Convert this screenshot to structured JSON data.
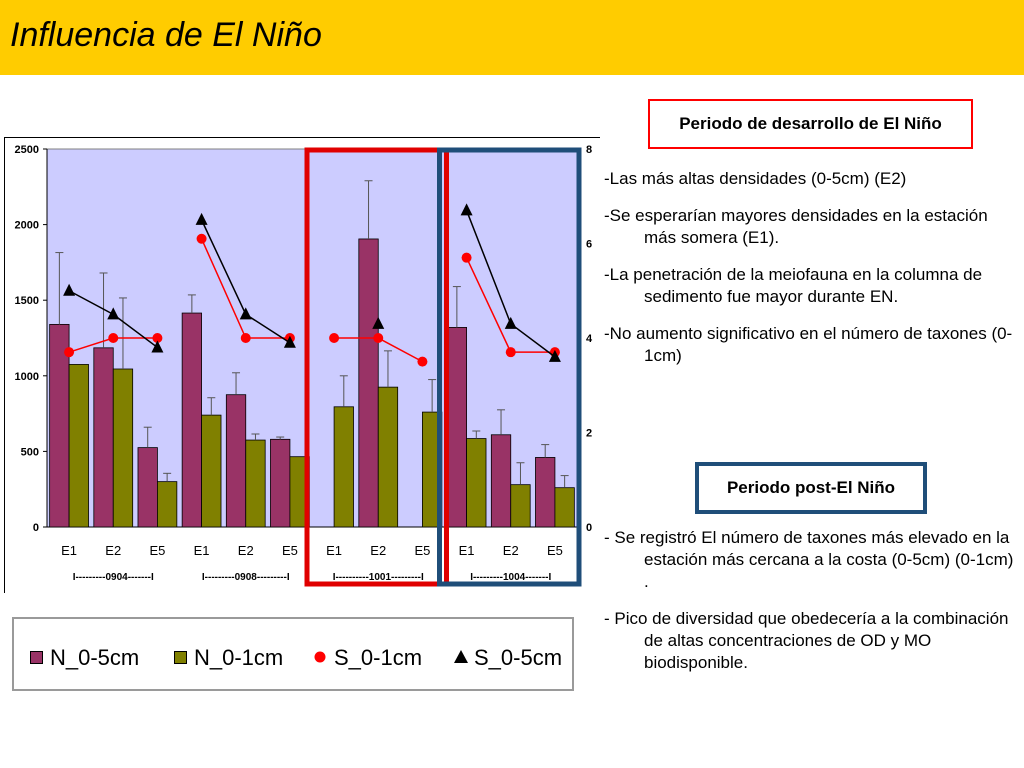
{
  "slide": {
    "title": "Influencia de El Niño"
  },
  "boxes": {
    "red": "Periodo de desarrollo de El Niño",
    "blue": "Periodo post-El Niño"
  },
  "bullets_top": [
    "-Las más altas densidades (0-5cm) (E2)",
    "-Se esperarían mayores densidades  en la estación más somera (E1).",
    "-La penetración de la meiofauna en la columna de sedimento fue mayor durante EN.",
    "-No aumento  significativo en el número de taxones (0-1cm)"
  ],
  "bullets_bottom": [
    "- Se registró El número de taxones más elevado en la estación más cercana a la costa (0-5cm) (0-1cm) .",
    "- Pico de diversidad que obedecería a la combinación de altas concentraciones de OD y MO biodisponible."
  ],
  "legend": {
    "n05": "N_0-5cm",
    "n01": "N_0-1cm",
    "s01": "S_0-1cm",
    "s05": "S_0-5cm"
  },
  "colors": {
    "n05": "#993366",
    "n01": "#808000",
    "s01": "#FF0000",
    "s05": "#000000",
    "plot_bg": "#CCCCFF",
    "title_bar": "#FFCC00",
    "highlight_red": "#E00000",
    "highlight_blue": "#1F4E79"
  },
  "chart_data": {
    "type": "bar",
    "categories": [
      "E1",
      "E2",
      "E5",
      "E1",
      "E2",
      "E5",
      "E1",
      "E2",
      "E5",
      "E1",
      "E2",
      "E5"
    ],
    "groups": [
      "I---------0904-------I",
      "I---------0908---------I",
      "I----------1001---------I",
      "I---------1004-------I"
    ],
    "ylim": [
      0,
      2500
    ],
    "yticks": [
      0,
      500,
      1000,
      1500,
      2000,
      2500
    ],
    "y2lim": [
      0,
      8
    ],
    "y2ticks": [
      0,
      2,
      4,
      6,
      8
    ],
    "series": [
      {
        "name": "N_0-5cm",
        "kind": "bar",
        "axis": "left",
        "values": [
          1340,
          1185,
          525,
          1415,
          875,
          580,
          null,
          1905,
          null,
          1320,
          610,
          460
        ],
        "error_high": [
          1815,
          1680,
          660,
          1535,
          1020,
          595,
          null,
          2290,
          null,
          1590,
          775,
          545
        ]
      },
      {
        "name": "N_0-1cm",
        "kind": "bar",
        "axis": "left",
        "values": [
          1075,
          1045,
          300,
          740,
          575,
          465,
          795,
          925,
          760,
          585,
          280,
          260
        ],
        "error_high": [
          null,
          1515,
          355,
          855,
          615,
          null,
          1000,
          1165,
          975,
          635,
          425,
          340
        ]
      },
      {
        "name": "S_0-1cm",
        "kind": "line",
        "axis": "right",
        "marker": "circle",
        "values": [
          3.7,
          4.0,
          4.0,
          6.1,
          4.0,
          4.0,
          4.0,
          4.0,
          3.5,
          5.7,
          3.7,
          3.7
        ]
      },
      {
        "name": "S_0-5cm",
        "kind": "line",
        "axis": "right",
        "marker": "triangle",
        "values": [
          5.0,
          4.5,
          3.8,
          6.5,
          4.5,
          3.9,
          null,
          4.3,
          null,
          6.7,
          4.3,
          3.6
        ]
      }
    ],
    "highlights": [
      {
        "color": "red",
        "categories": [
          6,
          8
        ]
      },
      {
        "color": "blue",
        "categories": [
          9,
          11
        ]
      }
    ]
  }
}
